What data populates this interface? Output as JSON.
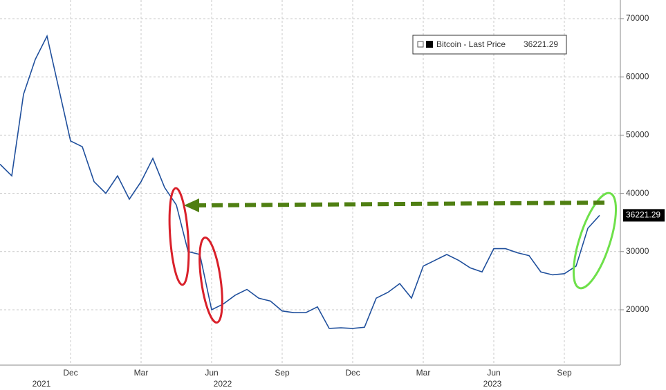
{
  "chart_data": {
    "type": "line",
    "categories": [
      null,
      null,
      null,
      null,
      null,
      null,
      "Dec",
      null,
      null,
      null,
      null,
      null,
      "Mar",
      null,
      null,
      null,
      null,
      null,
      "Jun",
      null,
      null,
      null,
      null,
      null,
      "Sep",
      null,
      null,
      null,
      null,
      null,
      "Dec",
      null,
      null,
      null,
      null,
      null,
      "Mar",
      null,
      null,
      null,
      null,
      null,
      "Jun",
      null,
      null,
      null,
      null,
      null,
      "Sep",
      null,
      null,
      null
    ],
    "year_labels": [
      "2021",
      "2022",
      "2023"
    ],
    "series": [
      {
        "name": "Bitcoin - Last Price",
        "color": "#1f4f9c",
        "values": [
          45000,
          43000,
          57000,
          63000,
          67000,
          58000,
          49000,
          48000,
          42000,
          40000,
          43000,
          39000,
          42000,
          46000,
          41000,
          38000,
          30000,
          29500,
          20000,
          21000,
          22500,
          23500,
          22000,
          21500,
          19800,
          19500,
          19500,
          20500,
          16800,
          16900,
          16800,
          17000,
          22000,
          23000,
          24500,
          22000,
          27500,
          28500,
          29500,
          28500,
          27200,
          26500,
          30500,
          30500,
          29800,
          29300,
          26500,
          26000,
          26200,
          27500,
          34000,
          36221.29
        ]
      }
    ],
    "ylim": [
      10500,
      73200
    ],
    "yticks": [
      20000,
      30000,
      40000,
      50000,
      60000,
      70000
    ],
    "grid": true
  }
}
